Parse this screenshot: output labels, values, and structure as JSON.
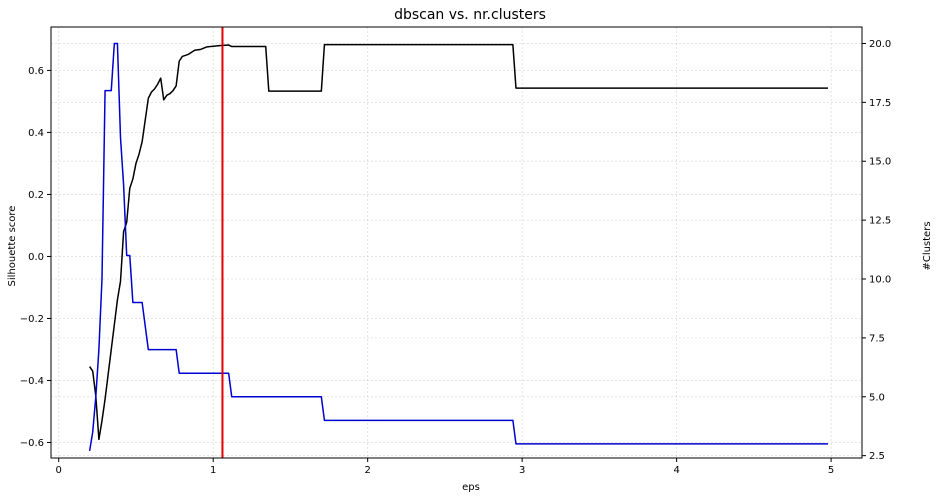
{
  "chart_data": {
    "type": "line",
    "title": "dbscan vs. nr.clusters",
    "xlabel": "eps",
    "ylabel": "Silhouette score",
    "y2label": "#Clusters",
    "xlim": [
      -0.05,
      5.2
    ],
    "ylim": [
      -0.65,
      0.74
    ],
    "y2lim": [
      2.4,
      20.7
    ],
    "xticks": [
      0,
      1,
      2,
      3,
      4,
      5
    ],
    "yticks": [
      -0.6,
      -0.4,
      -0.2,
      0.0,
      0.2,
      0.4,
      0.6
    ],
    "y2ticks": [
      2.5,
      5.0,
      7.5,
      10.0,
      12.5,
      15.0,
      17.5,
      20.0
    ],
    "grid": true,
    "vline": {
      "x": 1.06,
      "color": "#e00000"
    },
    "series": [
      {
        "axis": "left",
        "color": "#000000",
        "points": [
          [
            0.2,
            -0.355
          ],
          [
            0.22,
            -0.37
          ],
          [
            0.24,
            -0.45
          ],
          [
            0.26,
            -0.59
          ],
          [
            0.28,
            -0.53
          ],
          [
            0.3,
            -0.46
          ],
          [
            0.32,
            -0.38
          ],
          [
            0.34,
            -0.3
          ],
          [
            0.36,
            -0.22
          ],
          [
            0.38,
            -0.14
          ],
          [
            0.4,
            -0.08
          ],
          [
            0.42,
            0.08
          ],
          [
            0.44,
            0.11
          ],
          [
            0.46,
            0.22
          ],
          [
            0.48,
            0.25
          ],
          [
            0.5,
            0.3
          ],
          [
            0.52,
            0.33
          ],
          [
            0.54,
            0.37
          ],
          [
            0.56,
            0.44
          ],
          [
            0.58,
            0.51
          ],
          [
            0.6,
            0.53
          ],
          [
            0.62,
            0.54
          ],
          [
            0.64,
            0.555
          ],
          [
            0.66,
            0.575
          ],
          [
            0.68,
            0.505
          ],
          [
            0.7,
            0.52
          ],
          [
            0.72,
            0.525
          ],
          [
            0.74,
            0.535
          ],
          [
            0.76,
            0.55
          ],
          [
            0.78,
            0.63
          ],
          [
            0.8,
            0.645
          ],
          [
            0.84,
            0.652
          ],
          [
            0.88,
            0.665
          ],
          [
            0.92,
            0.668
          ],
          [
            0.96,
            0.676
          ],
          [
            1.0,
            0.678
          ],
          [
            1.04,
            0.68
          ],
          [
            1.1,
            0.682
          ],
          [
            1.12,
            0.677
          ],
          [
            1.34,
            0.677
          ],
          [
            1.36,
            0.533
          ],
          [
            1.7,
            0.533
          ],
          [
            1.72,
            0.683
          ],
          [
            2.94,
            0.683
          ],
          [
            2.96,
            0.543
          ],
          [
            4.98,
            0.543
          ]
        ]
      },
      {
        "axis": "right",
        "color": "#0000d0",
        "points": [
          [
            0.2,
            2.7
          ],
          [
            0.22,
            3.5
          ],
          [
            0.24,
            5.0
          ],
          [
            0.26,
            7.0
          ],
          [
            0.28,
            10.0
          ],
          [
            0.3,
            18.0
          ],
          [
            0.32,
            18.0
          ],
          [
            0.34,
            18.0
          ],
          [
            0.36,
            20.0
          ],
          [
            0.38,
            20.0
          ],
          [
            0.4,
            16.0
          ],
          [
            0.42,
            14.0
          ],
          [
            0.44,
            11.0
          ],
          [
            0.46,
            11.0
          ],
          [
            0.48,
            9.0
          ],
          [
            0.54,
            9.0
          ],
          [
            0.58,
            7.0
          ],
          [
            0.76,
            7.0
          ],
          [
            0.78,
            6.0
          ],
          [
            1.1,
            6.0
          ],
          [
            1.12,
            5.0
          ],
          [
            1.7,
            5.0
          ],
          [
            1.72,
            4.0
          ],
          [
            2.94,
            4.0
          ],
          [
            2.96,
            3.0
          ],
          [
            4.98,
            3.0
          ]
        ]
      }
    ]
  }
}
